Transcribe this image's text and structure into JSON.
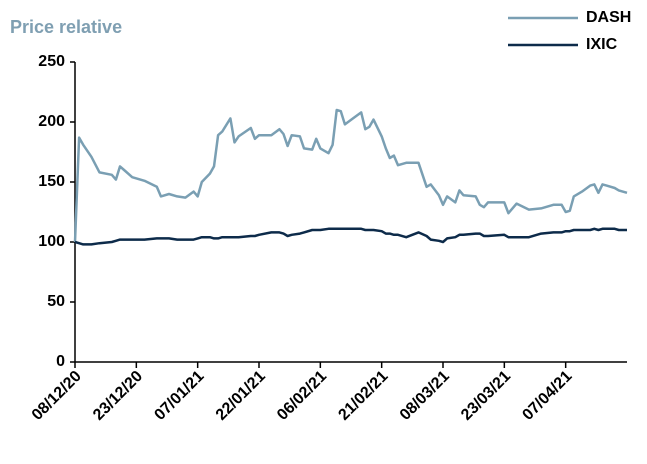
{
  "chart_data": {
    "type": "line",
    "title": "Price relative",
    "x": [
      "2020-12-08",
      "2020-12-09",
      "2020-12-10",
      "2020-12-12",
      "2020-12-14",
      "2020-12-17",
      "2020-12-18",
      "2020-12-19",
      "2020-12-20",
      "2020-12-22",
      "2020-12-25",
      "2020-12-28",
      "2020-12-29",
      "2020-12-31",
      "2021-01-02",
      "2021-01-04",
      "2021-01-06",
      "2021-01-07",
      "2021-01-08",
      "2021-01-10",
      "2021-01-11",
      "2021-01-12",
      "2021-01-13",
      "2021-01-15",
      "2021-01-16",
      "2021-01-17",
      "2021-01-20",
      "2021-01-21",
      "2021-01-22",
      "2021-01-25",
      "2021-01-27",
      "2021-01-28",
      "2021-01-29",
      "2021-01-30",
      "2021-02-01",
      "2021-02-02",
      "2021-02-04",
      "2021-02-05",
      "2021-02-06",
      "2021-02-08",
      "2021-02-09",
      "2021-02-10",
      "2021-02-11",
      "2021-02-12",
      "2021-02-14",
      "2021-02-16",
      "2021-02-17",
      "2021-02-18",
      "2021-02-19",
      "2021-02-21",
      "2021-02-22",
      "2021-02-23",
      "2021-02-24",
      "2021-02-25",
      "2021-02-27",
      "2021-03-02",
      "2021-03-04",
      "2021-03-05",
      "2021-03-07",
      "2021-03-08",
      "2021-03-09",
      "2021-03-11",
      "2021-03-12",
      "2021-03-13",
      "2021-03-16",
      "2021-03-17",
      "2021-03-18",
      "2021-03-19",
      "2021-03-23",
      "2021-03-24",
      "2021-03-26",
      "2021-03-29",
      "2021-04-01",
      "2021-04-04",
      "2021-04-06",
      "2021-04-07",
      "2021-04-08",
      "2021-04-09",
      "2021-04-11",
      "2021-04-13",
      "2021-04-14",
      "2021-04-15",
      "2021-04-16",
      "2021-04-17",
      "2021-04-19",
      "2021-04-20",
      "2021-04-22"
    ],
    "series": [
      {
        "name": "DASH",
        "color": "#7a9fb3",
        "values": [
          100,
          187,
          181,
          171,
          158,
          156,
          152,
          163,
          160,
          154,
          151,
          146,
          138,
          140,
          138,
          137,
          142,
          138,
          150,
          157,
          163,
          189,
          192,
          203,
          183,
          188,
          195,
          186,
          189,
          189,
          194,
          190,
          180,
          189,
          188,
          178,
          177,
          186,
          178,
          174,
          181,
          210,
          209,
          198,
          203,
          208,
          194,
          196,
          202,
          188,
          178,
          170,
          172,
          164,
          166,
          166,
          146,
          148,
          139,
          131,
          138,
          133,
          143,
          139,
          138,
          131,
          129,
          133,
          133,
          124,
          132,
          127,
          128,
          131,
          131,
          125,
          126,
          138,
          142,
          147,
          148,
          141,
          148,
          147,
          145,
          143,
          141
        ]
      },
      {
        "name": "IXIC",
        "color": "#0d2b4a",
        "values": [
          100,
          99,
          98,
          98,
          99,
          100,
          101,
          102,
          102,
          102,
          102,
          103,
          103,
          103,
          102,
          102,
          102,
          103,
          104,
          104,
          103,
          103,
          104,
          104,
          104,
          104,
          105,
          105,
          106,
          108,
          108,
          107,
          105,
          106,
          107,
          108,
          110,
          110,
          110,
          111,
          111,
          111,
          111,
          111,
          111,
          111,
          110,
          110,
          110,
          109,
          107,
          107,
          106,
          106,
          104,
          108,
          105,
          102,
          101,
          100,
          103,
          104,
          106,
          106,
          107,
          107,
          105,
          105,
          106,
          104,
          104,
          104,
          107,
          108,
          108,
          109,
          109,
          110,
          110,
          110,
          111,
          110,
          111,
          111,
          111,
          110,
          110
        ]
      }
    ],
    "xlim": [
      "2020-12-08",
      "2021-04-22"
    ],
    "xticks": [
      {
        "value": "2020-12-08",
        "label": "08/12/20"
      },
      {
        "value": "2020-12-23",
        "label": "23/12/20"
      },
      {
        "value": "2021-01-07",
        "label": "07/01/21"
      },
      {
        "value": "2021-01-22",
        "label": "22/01/21"
      },
      {
        "value": "2021-02-06",
        "label": "06/02/21"
      },
      {
        "value": "2021-02-21",
        "label": "21/02/21"
      },
      {
        "value": "2021-03-08",
        "label": "08/03/21"
      },
      {
        "value": "2021-03-23",
        "label": "23/03/21"
      },
      {
        "value": "2021-04-07",
        "label": "07/04/21"
      }
    ],
    "ylim": [
      0,
      250
    ],
    "yticks": [
      0,
      50,
      100,
      150,
      200,
      250
    ],
    "legend": "top-right"
  }
}
